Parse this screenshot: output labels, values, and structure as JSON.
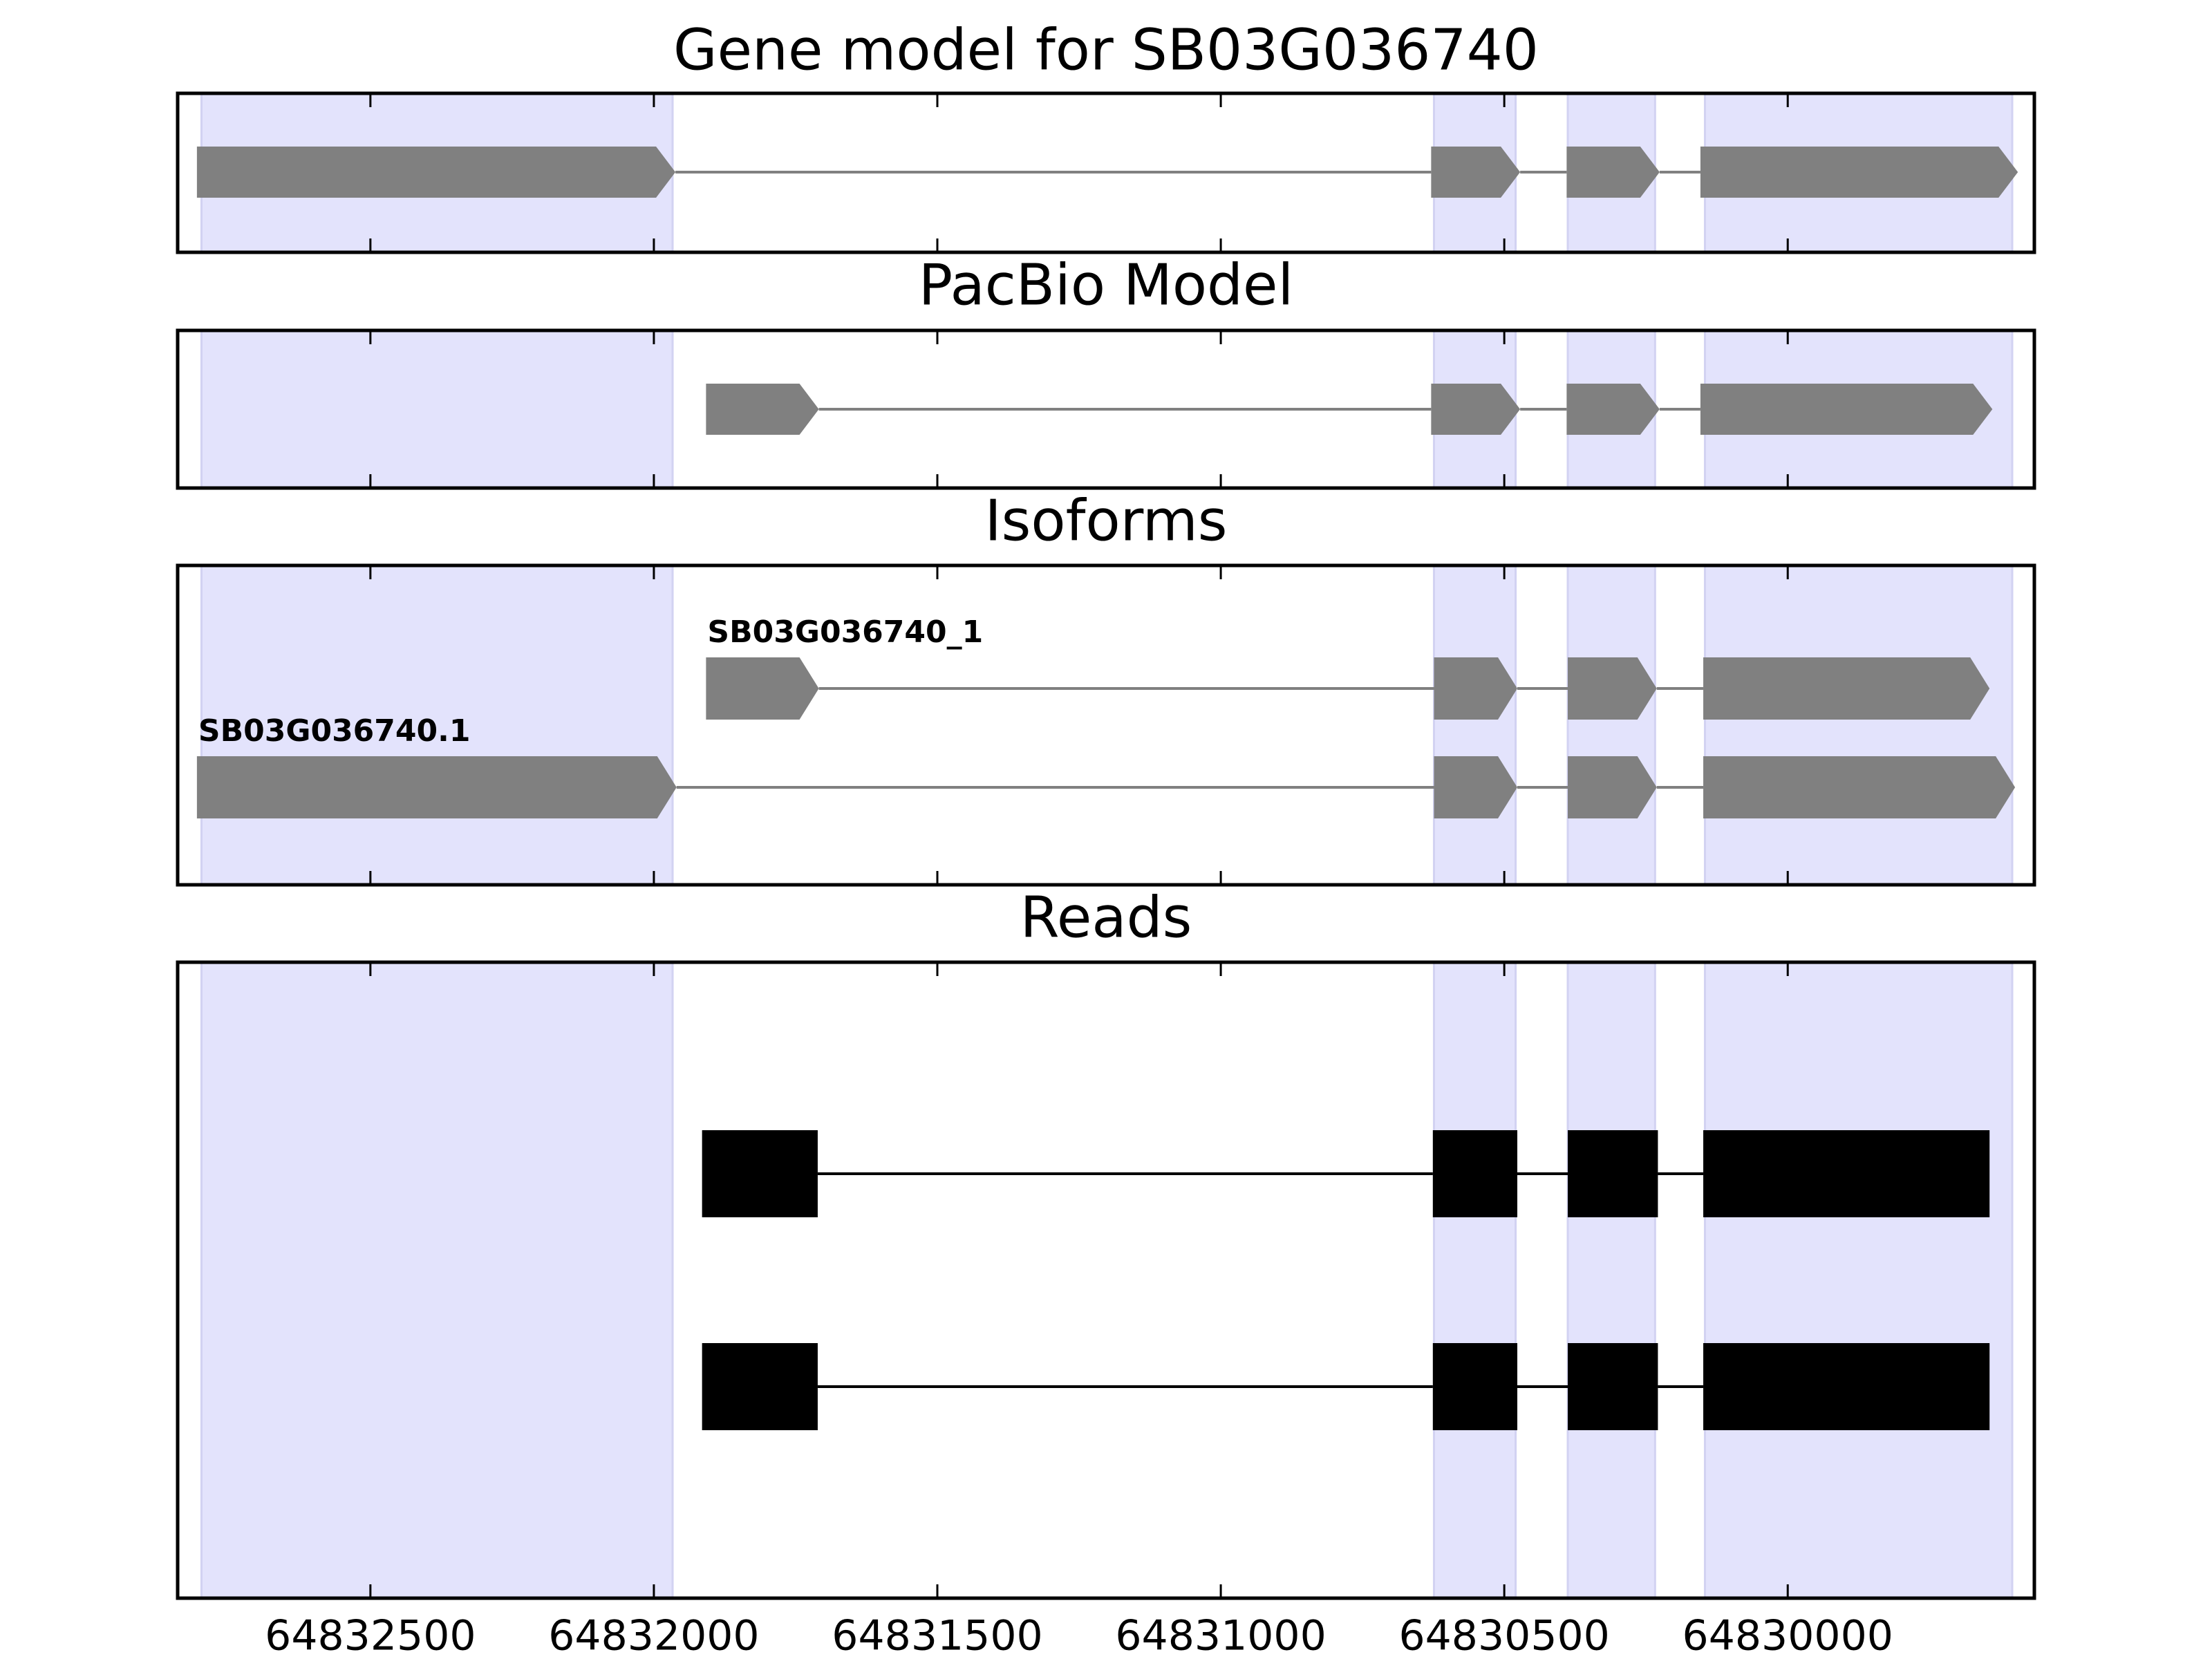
{
  "chart_data": {
    "type": "tracks",
    "xlim": [
      64832840,
      64829565
    ],
    "xticks": [
      64832500,
      64832000,
      64831500,
      64831000,
      64830500,
      64830000
    ],
    "region_color": "#e3e3fc",
    "regions": [
      [
        64832798,
        64831967
      ],
      [
        64830624,
        64830480
      ],
      [
        64830388,
        64830234
      ],
      [
        64830146,
        64829604
      ]
    ],
    "tracks": [
      {
        "title": "Gene model for SB03G036740",
        "type": "arrow",
        "color": "#808080",
        "rows": [
          {
            "exons": [
              [
                64832806,
                64831962
              ],
              [
                64830629,
                64830472
              ],
              [
                64830390,
                64830226
              ],
              [
                64830154,
                64829594
              ]
            ]
          }
        ]
      },
      {
        "title": "PacBio Model",
        "type": "arrow",
        "color": "#808080",
        "rows": [
          {
            "exons": [
              [
                64831908,
                64831709
              ],
              [
                64830629,
                64830472
              ],
              [
                64830390,
                64830226
              ],
              [
                64830154,
                64829639
              ]
            ]
          }
        ]
      },
      {
        "title": "Isoforms",
        "type": "arrow",
        "color": "#808080",
        "rows": [
          {
            "label": "SB03G036740_1",
            "exons": [
              [
                64831908,
                64831709
              ],
              [
                64830624,
                64830477
              ],
              [
                64830388,
                64830231
              ],
              [
                64830149,
                64829644
              ]
            ]
          },
          {
            "label": "SB03G036740.1",
            "exons": [
              [
                64832806,
                64831960
              ],
              [
                64830624,
                64830477
              ],
              [
                64830388,
                64830231
              ],
              [
                64830149,
                64829599
              ]
            ]
          }
        ]
      },
      {
        "title": "Reads",
        "type": "block",
        "color": "#000000",
        "rows": [
          {
            "exons": [
              [
                64831915,
                64831711
              ],
              [
                64830626,
                64830477
              ],
              [
                64830388,
                64830229
              ],
              [
                64830149,
                64829644
              ]
            ]
          },
          {
            "exons": [
              [
                64831915,
                64831711
              ],
              [
                64830626,
                64830477
              ],
              [
                64830388,
                64830229
              ],
              [
                64830149,
                64829644
              ]
            ]
          }
        ]
      }
    ]
  }
}
